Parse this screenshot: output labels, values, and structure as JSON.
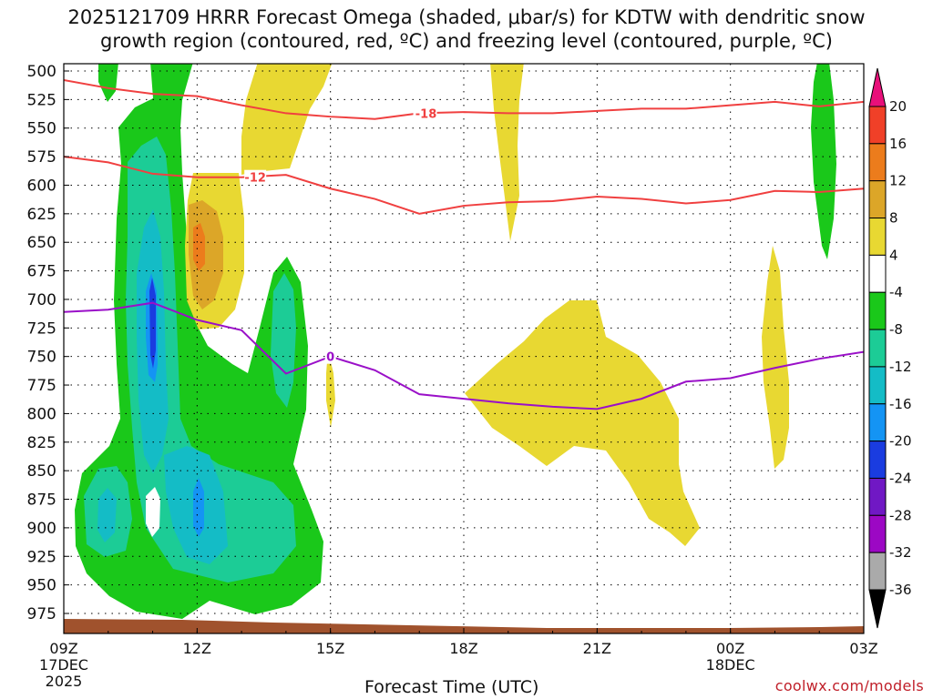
{
  "chart_data": {
    "type": "heatmap",
    "title": "2025121709 HRRR Forecast Omega (shaded, μbar/s) for KDTW with dendritic snow",
    "subtitle": "growth region (contoured, red, ºC) and freezing level (contoured, purple, ºC)",
    "xlabel": "Forecast Time (UTC)",
    "x_ticks": [
      {
        "hour": 0,
        "label": "09Z",
        "sub1": "17DEC",
        "sub2": "2025"
      },
      {
        "hour": 3,
        "label": "12Z",
        "sub1": "",
        "sub2": ""
      },
      {
        "hour": 6,
        "label": "15Z",
        "sub1": "",
        "sub2": ""
      },
      {
        "hour": 9,
        "label": "18Z",
        "sub1": "",
        "sub2": ""
      },
      {
        "hour": 12,
        "label": "21Z",
        "sub1": "",
        "sub2": ""
      },
      {
        "hour": 15,
        "label": "00Z",
        "sub1": "18DEC",
        "sub2": ""
      },
      {
        "hour": 18,
        "label": "03Z",
        "sub1": "",
        "sub2": ""
      }
    ],
    "y_ticks": [
      500,
      525,
      550,
      575,
      600,
      625,
      650,
      675,
      700,
      725,
      750,
      775,
      800,
      825,
      850,
      875,
      900,
      925,
      950,
      975
    ],
    "ylim_hPa": [
      500,
      1000
    ],
    "xlim_hours": [
      0,
      18
    ],
    "colorbar": {
      "levels": [
        "20",
        "16",
        "12",
        "8",
        "4",
        "-4",
        "-8",
        "-12",
        "-16",
        "-20",
        "-24",
        "-28",
        "-32",
        "-36"
      ],
      "colors": [
        "#e8107a",
        "#f04028",
        "#ec7c1c",
        "#dca628",
        "#e8d832",
        "#ffffff",
        "#1ac81a",
        "#1ccc96",
        "#14bcc6",
        "#1494f4",
        "#1a3ce0",
        "#7018c4",
        "#9c08c4",
        "#aaaaaa",
        "#000000"
      ]
    },
    "contours": [
      {
        "label": "-18",
        "color": "#f04040",
        "points": [
          [
            0,
            508
          ],
          [
            1,
            515
          ],
          [
            2,
            520
          ],
          [
            3,
            522
          ],
          [
            4,
            530
          ],
          [
            5,
            537
          ],
          [
            6,
            540
          ],
          [
            7,
            542
          ],
          [
            8,
            537
          ],
          [
            9,
            536
          ],
          [
            10,
            537
          ],
          [
            11,
            537
          ],
          [
            12,
            535
          ],
          [
            13,
            533
          ],
          [
            14,
            533
          ],
          [
            15,
            530
          ],
          [
            16,
            527
          ],
          [
            17,
            531
          ],
          [
            18,
            527
          ]
        ]
      },
      {
        "label": "-12",
        "color": "#f04040",
        "points": [
          [
            0,
            575
          ],
          [
            1,
            580
          ],
          [
            2,
            590
          ],
          [
            3,
            593
          ],
          [
            4,
            593
          ],
          [
            5,
            591
          ],
          [
            6,
            603
          ],
          [
            7,
            612
          ],
          [
            8,
            625
          ],
          [
            9,
            618
          ],
          [
            10,
            615
          ],
          [
            11,
            614
          ],
          [
            12,
            610
          ],
          [
            13,
            612
          ],
          [
            14,
            616
          ],
          [
            15,
            613
          ],
          [
            16,
            605
          ],
          [
            17,
            606
          ],
          [
            18,
            603
          ]
        ]
      },
      {
        "label": "0",
        "color": "#9a10c8",
        "points": [
          [
            0,
            711
          ],
          [
            1,
            709
          ],
          [
            2,
            703
          ],
          [
            3,
            718
          ],
          [
            4,
            727
          ],
          [
            5,
            765
          ],
          [
            6,
            750
          ],
          [
            7,
            762
          ],
          [
            8,
            783
          ],
          [
            9,
            787
          ],
          [
            10,
            791
          ],
          [
            11,
            794
          ],
          [
            12,
            796
          ],
          [
            13,
            787
          ],
          [
            14,
            772
          ],
          [
            15,
            769
          ],
          [
            16,
            760
          ],
          [
            17,
            752
          ],
          [
            18,
            746
          ]
        ]
      }
    ],
    "surface_fill_color": "#a0522d",
    "legend": "right colorbar"
  },
  "credit": "coolwx.com/models"
}
